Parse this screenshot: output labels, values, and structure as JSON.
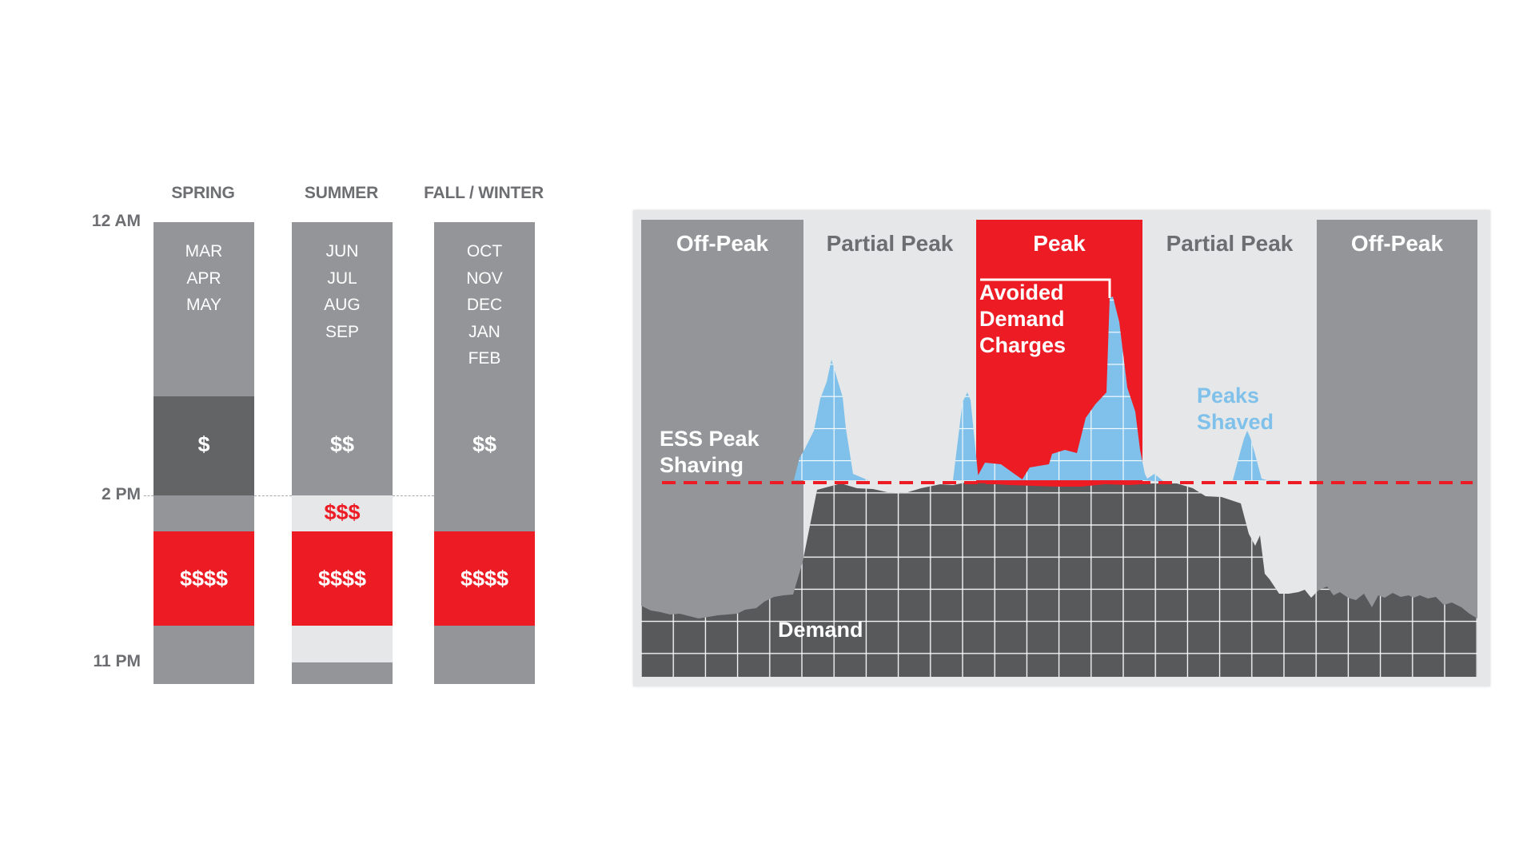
{
  "seasons_panel": {
    "seasons": [
      {
        "name": "SPRING",
        "months": [
          "MAR",
          "APR",
          "MAY"
        ],
        "rates": [
          "$",
          "$$$$"
        ]
      },
      {
        "name": "SUMMER",
        "months": [
          "JUN",
          "JUL",
          "AUG",
          "SEP"
        ],
        "rates": [
          "$$",
          "$$$",
          "$$$$"
        ]
      },
      {
        "name": "FALL / WINTER",
        "months": [
          "OCT",
          "NOV",
          "DEC",
          "JAN",
          "FEB"
        ],
        "rates": [
          "$$",
          "$$$$"
        ]
      }
    ],
    "time_labels": [
      "12 AM",
      "2 PM",
      "11 PM"
    ]
  },
  "demand_diagram": {
    "periods": [
      {
        "label": "Off-Peak",
        "kind": "off-peak"
      },
      {
        "label": "Partial Peak",
        "kind": "partial-peak"
      },
      {
        "label": "Peak",
        "kind": "peak"
      },
      {
        "label": "Partial Peak",
        "kind": "partial-peak"
      },
      {
        "label": "Off-Peak",
        "kind": "off-peak"
      }
    ],
    "annotations": {
      "avoided": [
        "Avoided",
        "Demand",
        "Charges"
      ],
      "ess": [
        "ESS Peak",
        "Shaving"
      ],
      "peaks_shaved": [
        "Peaks",
        "Shaved"
      ],
      "demand": "Demand"
    }
  },
  "colors": {
    "red": "#ed1c24",
    "gray": "#939598",
    "dark_gray": "#636466",
    "light_gray": "#e6e7e8",
    "demand_fill": "#58595b",
    "peaks_blue": "#7fc1ea"
  }
}
